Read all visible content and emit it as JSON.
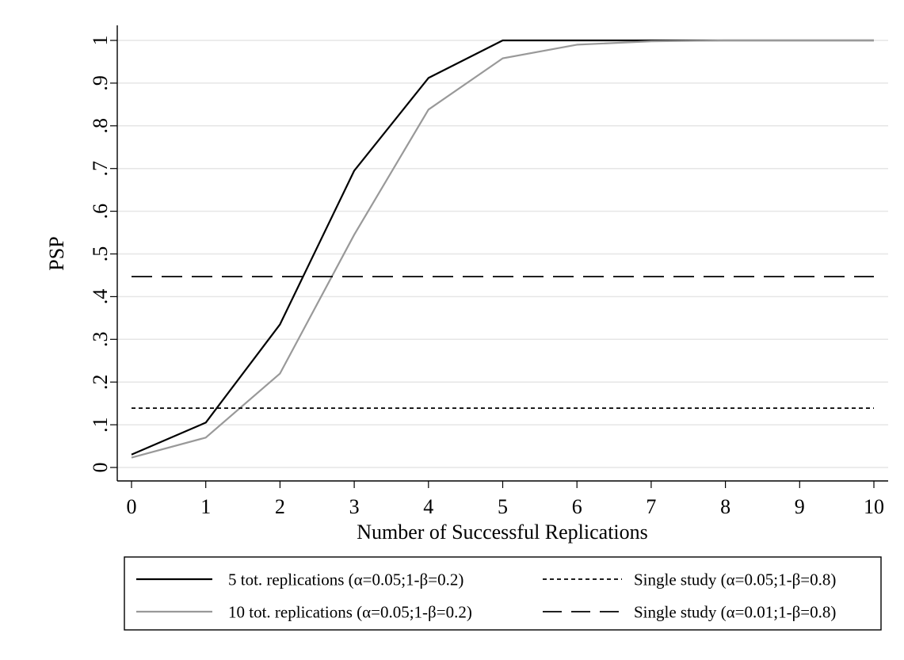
{
  "chart_data": {
    "type": "line",
    "xlabel": "Number of Successful Replications",
    "ylabel": "PSP",
    "xlim": [
      0,
      10
    ],
    "ylim": [
      0,
      1
    ],
    "x_ticks": [
      "0",
      "1",
      "2",
      "3",
      "4",
      "5",
      "6",
      "7",
      "8",
      "9",
      "10"
    ],
    "y_ticks": [
      "0",
      ".1",
      ".2",
      ".3",
      ".4",
      ".5",
      ".6",
      ".7",
      ".8",
      ".9",
      "1"
    ],
    "grid": true,
    "legend_position": "bottom",
    "series": [
      {
        "name": "5 tot. replications (α=0.05;1-β=0.2)",
        "color": "#000000",
        "style": "solid",
        "x": [
          0,
          1,
          2,
          3,
          4,
          5,
          6,
          7,
          8,
          9,
          10
        ],
        "values": [
          0.03,
          0.105,
          0.335,
          0.695,
          0.912,
          1.0,
          1.0,
          1.0,
          1.0,
          1.0,
          1.0
        ]
      },
      {
        "name": "10 tot. replications (α=0.05;1-β=0.2)",
        "color": "#999999",
        "style": "solid",
        "x": [
          0,
          1,
          2,
          3,
          4,
          5,
          6,
          7,
          8,
          9,
          10
        ],
        "values": [
          0.023,
          0.07,
          0.22,
          0.545,
          0.838,
          0.958,
          0.99,
          0.998,
          1.0,
          1.0,
          1.0
        ]
      },
      {
        "name": "Single study (α=0.05;1-β=0.8)",
        "color": "#000000",
        "style": "dotted",
        "x": [
          0,
          10
        ],
        "values": [
          0.139,
          0.139
        ]
      },
      {
        "name": "Single study (α=0.01;1-β=0.8)",
        "color": "#000000",
        "style": "dashed",
        "x": [
          0,
          10
        ],
        "values": [
          0.447,
          0.447
        ]
      }
    ]
  }
}
